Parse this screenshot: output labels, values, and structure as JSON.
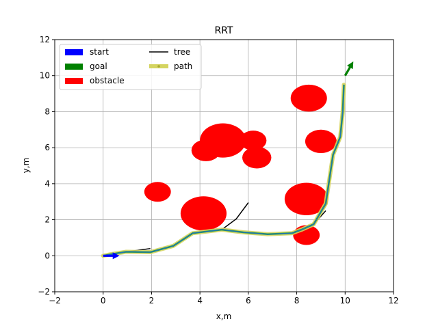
{
  "chart_data": {
    "type": "line",
    "title": "RRT",
    "xlabel": "x,m",
    "ylabel": "y,m",
    "xlim": [
      -2,
      12
    ],
    "ylim": [
      -2,
      12
    ],
    "xticks": [
      -2,
      0,
      2,
      4,
      6,
      8,
      10,
      12
    ],
    "yticks": [
      -2,
      0,
      2,
      4,
      6,
      8,
      10,
      12
    ],
    "grid": true,
    "legend_placement": "top-left",
    "legend": [
      {
        "label": "start",
        "kind": "patch",
        "color": "#0000ff"
      },
      {
        "label": "goal",
        "kind": "patch",
        "color": "#008000"
      },
      {
        "label": "obstacle",
        "kind": "patch",
        "color": "#ff0000"
      },
      {
        "label": "tree",
        "kind": "line",
        "color": "#000000"
      },
      {
        "label": "path",
        "kind": "thickline",
        "color": "#d4d460"
      }
    ],
    "start": {
      "x": 0,
      "y": 0,
      "heading_deg": 0,
      "color": "#0000ff"
    },
    "goal": {
      "x": 10,
      "y": 10,
      "heading_deg": 60,
      "color": "#008000"
    },
    "obstacles": [
      {
        "x": 8.5,
        "y": 8.75,
        "r": 0.75
      },
      {
        "x": 4.95,
        "y": 6.4,
        "r": 0.95
      },
      {
        "x": 6.2,
        "y": 6.4,
        "r": 0.55
      },
      {
        "x": 4.25,
        "y": 5.85,
        "r": 0.6
      },
      {
        "x": 6.35,
        "y": 5.45,
        "r": 0.6
      },
      {
        "x": 9.0,
        "y": 6.35,
        "r": 0.65
      },
      {
        "x": 2.25,
        "y": 3.55,
        "r": 0.55
      },
      {
        "x": 4.15,
        "y": 2.35,
        "r": 0.95
      },
      {
        "x": 8.4,
        "y": 3.15,
        "r": 0.9
      },
      {
        "x": 8.4,
        "y": 1.15,
        "r": 0.55
      }
    ],
    "tree": [
      [
        [
          0,
          0
        ],
        [
          0.3,
          0.08
        ],
        [
          0.95,
          0.22
        ],
        [
          1.95,
          0.4
        ]
      ],
      [
        [
          0.95,
          0.22
        ],
        [
          1.95,
          0.2
        ],
        [
          2.9,
          0.55
        ],
        [
          3.7,
          1.25
        ]
      ],
      [
        [
          3.7,
          1.25
        ],
        [
          4.9,
          1.45
        ],
        [
          5.5,
          2.05
        ],
        [
          6.0,
          2.95
        ]
      ],
      [
        [
          4.9,
          1.45
        ],
        [
          5.8,
          1.3
        ],
        [
          6.8,
          1.2
        ],
        [
          7.8,
          1.25
        ],
        [
          8.2,
          1.45
        ],
        [
          8.7,
          1.75
        ],
        [
          9.2,
          2.5
        ]
      ],
      [
        [
          8.7,
          1.75
        ],
        [
          9.2,
          2.9
        ],
        [
          9.5,
          5.6
        ],
        [
          9.8,
          6.6
        ],
        [
          9.9,
          8.0
        ],
        [
          9.95,
          9.5
        ]
      ]
    ],
    "path": [
      [
        0,
        0
      ],
      [
        0.3,
        0.08
      ],
      [
        0.95,
        0.22
      ],
      [
        1.95,
        0.2
      ],
      [
        2.9,
        0.55
      ],
      [
        3.7,
        1.25
      ],
      [
        4.9,
        1.45
      ],
      [
        5.8,
        1.3
      ],
      [
        6.8,
        1.2
      ],
      [
        7.8,
        1.25
      ],
      [
        8.2,
        1.45
      ],
      [
        8.7,
        1.75
      ],
      [
        9.2,
        2.9
      ],
      [
        9.5,
        5.6
      ],
      [
        9.8,
        6.6
      ],
      [
        9.9,
        8.0
      ],
      [
        9.95,
        9.5
      ]
    ],
    "colors": {
      "obstacle": "#ff0000",
      "tree": "#000000",
      "path": "#d4d460",
      "path_inner_blue": "#1f77b4",
      "path_inner_green": "#2ca02c",
      "grid": "#b0b0b0"
    }
  }
}
